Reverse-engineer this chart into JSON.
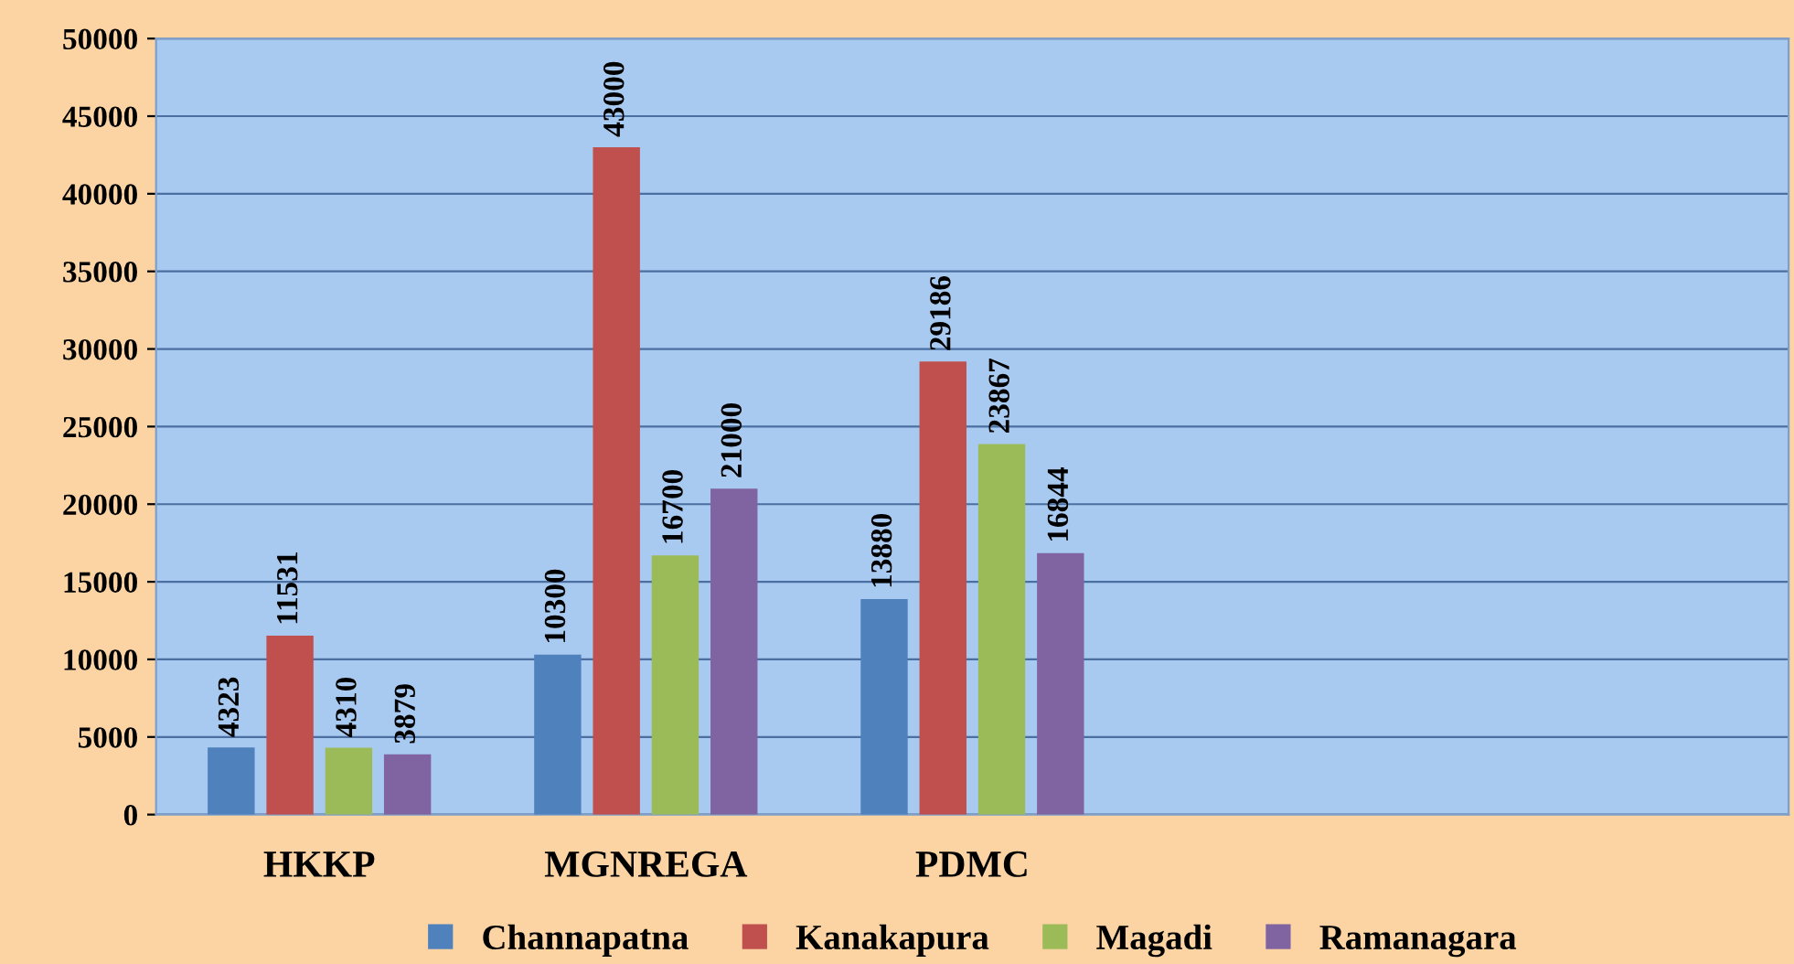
{
  "chart_data": {
    "type": "bar",
    "categories": [
      "HKKP",
      "MGNREGA",
      "PDMC",
      null,
      null
    ],
    "series": [
      {
        "name": "Channapatna",
        "color": "#4f81bd",
        "values": [
          4323,
          10300,
          13880,
          null,
          null
        ]
      },
      {
        "name": "Kanakapura",
        "color": "#c0504d",
        "values": [
          11531,
          43000,
          29186,
          null,
          null
        ]
      },
      {
        "name": "Magadi",
        "color": "#9bbb59",
        "values": [
          4310,
          16700,
          23867,
          null,
          null
        ]
      },
      {
        "name": "Ramanagara",
        "color": "#8064a2",
        "values": [
          3879,
          21000,
          16844,
          null,
          null
        ]
      }
    ],
    "ylim": [
      0,
      50000
    ],
    "yticks": [
      0,
      5000,
      10000,
      15000,
      20000,
      25000,
      30000,
      35000,
      40000,
      45000,
      50000
    ],
    "grid": "y",
    "legend": "bottom",
    "data_labels": true
  }
}
